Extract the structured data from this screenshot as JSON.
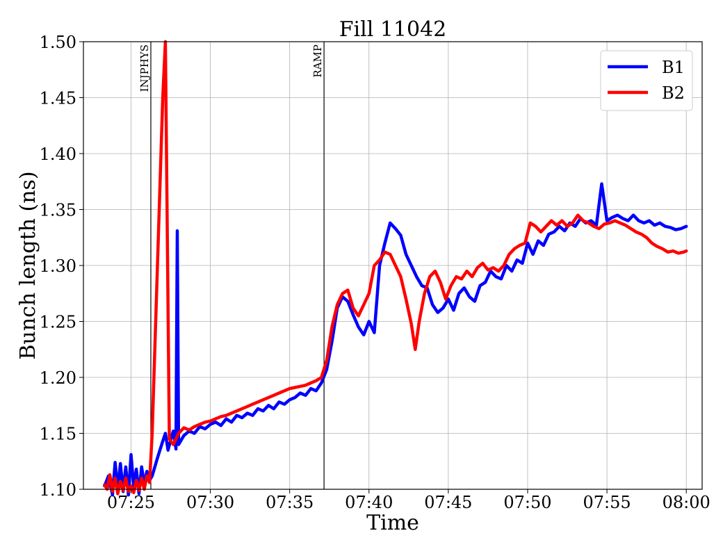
{
  "chart_data": {
    "type": "line",
    "title": "Fill 11042",
    "xlabel": "Time",
    "ylabel": "Bunch length (ns)",
    "xlim": [
      "07:22",
      "08:01"
    ],
    "ylim": [
      1.1,
      1.5
    ],
    "xticks": [
      "07:25",
      "07:30",
      "07:35",
      "07:40",
      "07:45",
      "07:50",
      "07:55",
      "08:00"
    ],
    "yticks": [
      "1.10",
      "1.15",
      "1.20",
      "1.25",
      "1.30",
      "1.35",
      "1.40",
      "1.45",
      "1.50"
    ],
    "grid": true,
    "legend_position": "top-right",
    "annotations": [
      {
        "label": "INJPHYS",
        "x": "07:26:15"
      },
      {
        "label": "RAMP",
        "x": "07:37:10"
      }
    ],
    "series": [
      {
        "name": "B1",
        "color": "#0000ff",
        "points": [
          [
            "07:23:20",
            1.103
          ],
          [
            "07:23:35",
            1.112
          ],
          [
            "07:23:50",
            1.095
          ],
          [
            "07:24:00",
            1.124
          ],
          [
            "07:24:10",
            1.1
          ],
          [
            "07:24:20",
            1.123
          ],
          [
            "07:24:30",
            1.098
          ],
          [
            "07:24:40",
            1.12
          ],
          [
            "07:24:50",
            1.095
          ],
          [
            "07:25:00",
            1.131
          ],
          [
            "07:25:10",
            1.102
          ],
          [
            "07:25:20",
            1.118
          ],
          [
            "07:25:30",
            1.096
          ],
          [
            "07:25:40",
            1.12
          ],
          [
            "07:25:50",
            1.105
          ],
          [
            "07:26:00",
            1.116
          ],
          [
            "07:26:10",
            1.108
          ],
          [
            "07:26:20",
            1.112
          ],
          [
            "07:26:40",
            1.128
          ],
          [
            "07:27:00",
            1.143
          ],
          [
            "07:27:10",
            1.15
          ],
          [
            "07:27:20",
            1.135
          ],
          [
            "07:27:30",
            1.144
          ],
          [
            "07:27:40",
            1.152
          ],
          [
            "07:27:50",
            1.136
          ],
          [
            "07:27:55",
            1.331
          ],
          [
            "07:28:00",
            1.14
          ],
          [
            "07:28:20",
            1.148
          ],
          [
            "07:28:40",
            1.152
          ],
          [
            "07:29:00",
            1.15
          ],
          [
            "07:29:20",
            1.156
          ],
          [
            "07:29:40",
            1.154
          ],
          [
            "07:30:00",
            1.158
          ],
          [
            "07:30:20",
            1.16
          ],
          [
            "07:30:40",
            1.157
          ],
          [
            "07:31:00",
            1.163
          ],
          [
            "07:31:20",
            1.16
          ],
          [
            "07:31:40",
            1.166
          ],
          [
            "07:32:00",
            1.164
          ],
          [
            "07:32:20",
            1.168
          ],
          [
            "07:32:40",
            1.166
          ],
          [
            "07:33:00",
            1.172
          ],
          [
            "07:33:20",
            1.17
          ],
          [
            "07:33:40",
            1.175
          ],
          [
            "07:34:00",
            1.172
          ],
          [
            "07:34:20",
            1.178
          ],
          [
            "07:34:40",
            1.176
          ],
          [
            "07:35:00",
            1.18
          ],
          [
            "07:35:20",
            1.182
          ],
          [
            "07:35:40",
            1.186
          ],
          [
            "07:36:00",
            1.184
          ],
          [
            "07:36:20",
            1.19
          ],
          [
            "07:36:40",
            1.188
          ],
          [
            "07:37:00",
            1.195
          ],
          [
            "07:37:20",
            1.207
          ],
          [
            "07:37:40",
            1.232
          ],
          [
            "07:38:00",
            1.262
          ],
          [
            "07:38:20",
            1.272
          ],
          [
            "07:38:40",
            1.268
          ],
          [
            "07:39:00",
            1.256
          ],
          [
            "07:39:20",
            1.245
          ],
          [
            "07:39:40",
            1.238
          ],
          [
            "07:40:00",
            1.25
          ],
          [
            "07:40:20",
            1.24
          ],
          [
            "07:40:40",
            1.3
          ],
          [
            "07:41:00",
            1.32
          ],
          [
            "07:41:20",
            1.338
          ],
          [
            "07:41:40",
            1.333
          ],
          [
            "07:42:00",
            1.327
          ],
          [
            "07:42:20",
            1.31
          ],
          [
            "07:42:40",
            1.3
          ],
          [
            "07:43:00",
            1.29
          ],
          [
            "07:43:20",
            1.282
          ],
          [
            "07:43:40",
            1.28
          ],
          [
            "07:44:00",
            1.265
          ],
          [
            "07:44:20",
            1.258
          ],
          [
            "07:44:40",
            1.262
          ],
          [
            "07:45:00",
            1.27
          ],
          [
            "07:45:20",
            1.26
          ],
          [
            "07:45:40",
            1.275
          ],
          [
            "07:46:00",
            1.28
          ],
          [
            "07:46:20",
            1.272
          ],
          [
            "07:46:40",
            1.268
          ],
          [
            "07:47:00",
            1.282
          ],
          [
            "07:47:20",
            1.285
          ],
          [
            "07:47:40",
            1.295
          ],
          [
            "07:48:00",
            1.29
          ],
          [
            "07:48:20",
            1.288
          ],
          [
            "07:48:40",
            1.3
          ],
          [
            "07:49:00",
            1.295
          ],
          [
            "07:49:20",
            1.305
          ],
          [
            "07:49:40",
            1.302
          ],
          [
            "07:50:00",
            1.32
          ],
          [
            "07:50:20",
            1.31
          ],
          [
            "07:50:40",
            1.322
          ],
          [
            "07:51:00",
            1.318
          ],
          [
            "07:51:20",
            1.328
          ],
          [
            "07:51:40",
            1.33
          ],
          [
            "07:52:00",
            1.335
          ],
          [
            "07:52:20",
            1.331
          ],
          [
            "07:52:40",
            1.338
          ],
          [
            "07:53:00",
            1.335
          ],
          [
            "07:53:20",
            1.342
          ],
          [
            "07:53:40",
            1.338
          ],
          [
            "07:54:00",
            1.34
          ],
          [
            "07:54:20",
            1.336
          ],
          [
            "07:54:40",
            1.373
          ],
          [
            "07:55:00",
            1.34
          ],
          [
            "07:55:20",
            1.343
          ],
          [
            "07:55:40",
            1.345
          ],
          [
            "07:56:00",
            1.342
          ],
          [
            "07:56:20",
            1.34
          ],
          [
            "07:56:40",
            1.345
          ],
          [
            "07:57:00",
            1.34
          ],
          [
            "07:57:20",
            1.338
          ],
          [
            "07:57:40",
            1.34
          ],
          [
            "07:58:00",
            1.336
          ],
          [
            "07:58:20",
            1.338
          ],
          [
            "07:58:40",
            1.335
          ],
          [
            "07:59:00",
            1.334
          ],
          [
            "07:59:20",
            1.332
          ],
          [
            "07:59:40",
            1.333
          ],
          [
            "08:00:00",
            1.335
          ]
        ]
      },
      {
        "name": "B2",
        "color": "#ff0000",
        "points": [
          [
            "07:23:20",
            1.104
          ],
          [
            "07:23:30",
            1.1
          ],
          [
            "07:23:40",
            1.113
          ],
          [
            "07:23:50",
            1.098
          ],
          [
            "07:24:00",
            1.11
          ],
          [
            "07:24:10",
            1.096
          ],
          [
            "07:24:20",
            1.107
          ],
          [
            "07:24:30",
            1.099
          ],
          [
            "07:24:40",
            1.11
          ],
          [
            "07:24:50",
            1.098
          ],
          [
            "07:25:00",
            1.103
          ],
          [
            "07:25:10",
            1.097
          ],
          [
            "07:25:20",
            1.108
          ],
          [
            "07:25:30",
            1.099
          ],
          [
            "07:25:40",
            1.11
          ],
          [
            "07:25:50",
            1.1
          ],
          [
            "07:26:00",
            1.112
          ],
          [
            "07:26:10",
            1.106
          ],
          [
            "07:26:20",
            1.15
          ],
          [
            "07:26:40",
            1.3
          ],
          [
            "07:27:00",
            1.45
          ],
          [
            "07:27:10",
            1.5
          ],
          [
            "07:27:25",
            1.145
          ],
          [
            "07:27:40",
            1.14
          ],
          [
            "07:28:00",
            1.15
          ],
          [
            "07:28:20",
            1.155
          ],
          [
            "07:28:40",
            1.153
          ],
          [
            "07:29:00",
            1.156
          ],
          [
            "07:29:20",
            1.158
          ],
          [
            "07:29:40",
            1.16
          ],
          [
            "07:30:00",
            1.161
          ],
          [
            "07:30:20",
            1.163
          ],
          [
            "07:30:40",
            1.165
          ],
          [
            "07:31:00",
            1.166
          ],
          [
            "07:31:20",
            1.168
          ],
          [
            "07:31:40",
            1.17
          ],
          [
            "07:32:00",
            1.172
          ],
          [
            "07:32:20",
            1.174
          ],
          [
            "07:32:40",
            1.176
          ],
          [
            "07:33:00",
            1.178
          ],
          [
            "07:33:20",
            1.18
          ],
          [
            "07:33:40",
            1.182
          ],
          [
            "07:34:00",
            1.184
          ],
          [
            "07:34:20",
            1.186
          ],
          [
            "07:34:40",
            1.188
          ],
          [
            "07:35:00",
            1.19
          ],
          [
            "07:35:20",
            1.191
          ],
          [
            "07:35:40",
            1.192
          ],
          [
            "07:36:00",
            1.193
          ],
          [
            "07:36:20",
            1.195
          ],
          [
            "07:36:40",
            1.197
          ],
          [
            "07:37:00",
            1.2
          ],
          [
            "07:37:20",
            1.215
          ],
          [
            "07:37:40",
            1.245
          ],
          [
            "07:38:00",
            1.265
          ],
          [
            "07:38:20",
            1.275
          ],
          [
            "07:38:40",
            1.278
          ],
          [
            "07:39:00",
            1.262
          ],
          [
            "07:39:20",
            1.255
          ],
          [
            "07:39:40",
            1.265
          ],
          [
            "07:40:00",
            1.275
          ],
          [
            "07:40:20",
            1.3
          ],
          [
            "07:40:40",
            1.305
          ],
          [
            "07:41:00",
            1.312
          ],
          [
            "07:41:20",
            1.31
          ],
          [
            "07:41:40",
            1.3
          ],
          [
            "07:42:00",
            1.29
          ],
          [
            "07:42:20",
            1.27
          ],
          [
            "07:42:40",
            1.248
          ],
          [
            "07:42:55",
            1.225
          ],
          [
            "07:43:10",
            1.25
          ],
          [
            "07:43:30",
            1.275
          ],
          [
            "07:43:50",
            1.29
          ],
          [
            "07:44:10",
            1.295
          ],
          [
            "07:44:30",
            1.285
          ],
          [
            "07:44:50",
            1.27
          ],
          [
            "07:45:10",
            1.282
          ],
          [
            "07:45:30",
            1.29
          ],
          [
            "07:45:50",
            1.288
          ],
          [
            "07:46:10",
            1.295
          ],
          [
            "07:46:30",
            1.29
          ],
          [
            "07:46:50",
            1.298
          ],
          [
            "07:47:10",
            1.302
          ],
          [
            "07:47:30",
            1.296
          ],
          [
            "07:47:50",
            1.298
          ],
          [
            "07:48:10",
            1.295
          ],
          [
            "07:48:30",
            1.3
          ],
          [
            "07:48:50",
            1.31
          ],
          [
            "07:49:10",
            1.315
          ],
          [
            "07:49:30",
            1.318
          ],
          [
            "07:49:50",
            1.32
          ],
          [
            "07:50:10",
            1.338
          ],
          [
            "07:50:30",
            1.335
          ],
          [
            "07:50:50",
            1.33
          ],
          [
            "07:51:10",
            1.335
          ],
          [
            "07:51:30",
            1.34
          ],
          [
            "07:51:50",
            1.336
          ],
          [
            "07:52:10",
            1.34
          ],
          [
            "07:52:30",
            1.335
          ],
          [
            "07:52:50",
            1.338
          ],
          [
            "07:53:10",
            1.345
          ],
          [
            "07:53:30",
            1.34
          ],
          [
            "07:53:50",
            1.338
          ],
          [
            "07:54:10",
            1.335
          ],
          [
            "07:54:30",
            1.333
          ],
          [
            "07:54:50",
            1.337
          ],
          [
            "07:55:10",
            1.338
          ],
          [
            "07:55:30",
            1.34
          ],
          [
            "07:55:50",
            1.338
          ],
          [
            "07:56:10",
            1.336
          ],
          [
            "07:56:30",
            1.333
          ],
          [
            "07:56:50",
            1.33
          ],
          [
            "07:57:10",
            1.328
          ],
          [
            "07:57:30",
            1.325
          ],
          [
            "07:57:50",
            1.32
          ],
          [
            "07:58:10",
            1.317
          ],
          [
            "07:58:30",
            1.315
          ],
          [
            "07:58:50",
            1.312
          ],
          [
            "07:59:10",
            1.313
          ],
          [
            "07:59:30",
            1.311
          ],
          [
            "07:59:50",
            1.312
          ],
          [
            "08:00:00",
            1.313
          ]
        ]
      }
    ]
  }
}
